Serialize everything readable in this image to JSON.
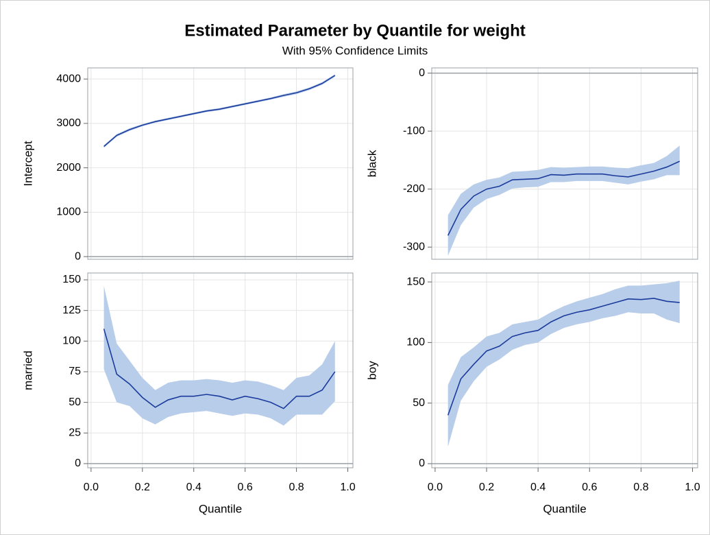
{
  "title": "Estimated Parameter by Quantile for weight",
  "subtitle": "With 95% Confidence Limits",
  "chart_data": [
    {
      "type": "band-line",
      "ylabel": "Intercept",
      "color": "#1a3b9c",
      "band_color": "#b8cde9",
      "x": [
        0.05,
        0.1,
        0.15,
        0.2,
        0.25,
        0.3,
        0.35,
        0.4,
        0.45,
        0.5,
        0.55,
        0.6,
        0.65,
        0.7,
        0.75,
        0.8,
        0.85,
        0.9,
        0.95
      ],
      "values": [
        2480,
        2730,
        2860,
        2960,
        3040,
        3100,
        3160,
        3220,
        3280,
        3320,
        3380,
        3440,
        3500,
        3560,
        3630,
        3690,
        3780,
        3900,
        4080
      ],
      "lower": [
        2450,
        2700,
        2830,
        2935,
        3015,
        3075,
        3135,
        3195,
        3255,
        3295,
        3355,
        3415,
        3475,
        3535,
        3600,
        3660,
        3750,
        3870,
        4050
      ],
      "upper": [
        2510,
        2760,
        2890,
        2985,
        3065,
        3125,
        3185,
        3245,
        3305,
        3345,
        3405,
        3465,
        3525,
        3585,
        3660,
        3720,
        3810,
        3930,
        4110
      ],
      "xlim": [
        -0.013,
        1.02
      ],
      "ylim": [
        -60,
        4250
      ],
      "yticks": [
        0,
        1000,
        2000,
        3000,
        4000
      ],
      "xgrid": [
        0,
        0.2,
        0.4,
        0.6,
        0.8,
        1
      ],
      "refline": 0,
      "grid": true
    },
    {
      "type": "band-line",
      "ylabel": "black",
      "color": "#1a3b9c",
      "band_color": "#b8cde9",
      "x": [
        0.05,
        0.1,
        0.15,
        0.2,
        0.25,
        0.3,
        0.35,
        0.4,
        0.45,
        0.5,
        0.55,
        0.6,
        0.65,
        0.7,
        0.75,
        0.8,
        0.85,
        0.9,
        0.95
      ],
      "values": [
        -280,
        -235,
        -212,
        -200,
        -195,
        -184,
        -183,
        -182,
        -175,
        -176,
        -174,
        -174,
        -174,
        -177,
        -179,
        -174,
        -169,
        -162,
        -152
      ],
      "lower": [
        -315,
        -262,
        -232,
        -217,
        -210,
        -199,
        -197,
        -196,
        -188,
        -188,
        -186,
        -186,
        -186,
        -189,
        -192,
        -187,
        -183,
        -176,
        -176
      ],
      "upper": [
        -245,
        -208,
        -192,
        -184,
        -180,
        -170,
        -169,
        -167,
        -162,
        -163,
        -162,
        -161,
        -161,
        -163,
        -164,
        -159,
        -155,
        -143,
        -125
      ],
      "xlim": [
        -0.013,
        1.02
      ],
      "ylim": [
        -321,
        9
      ],
      "yticks": [
        -300,
        -200,
        -100,
        0
      ],
      "xgrid": [
        0,
        0.2,
        0.4,
        0.6,
        0.8,
        1
      ],
      "refline": 0,
      "grid": true
    },
    {
      "type": "band-line",
      "ylabel": "married",
      "xlabel": "Quantile",
      "color": "#1a3b9c",
      "band_color": "#b8cde9",
      "x": [
        0.05,
        0.1,
        0.15,
        0.2,
        0.25,
        0.3,
        0.35,
        0.4,
        0.45,
        0.5,
        0.55,
        0.6,
        0.65,
        0.7,
        0.75,
        0.8,
        0.85,
        0.9,
        0.95
      ],
      "values": [
        110,
        73,
        65,
        54,
        46,
        52,
        55,
        55,
        56.5,
        55,
        52,
        55,
        53,
        50,
        45,
        55,
        55,
        60,
        75
      ],
      "lower": [
        77,
        50,
        47,
        37,
        32,
        38,
        41,
        42,
        43,
        41,
        39,
        41,
        40,
        37,
        31,
        40,
        40,
        40,
        51
      ],
      "upper": [
        145,
        98,
        84,
        70,
        60,
        66,
        68,
        68,
        69,
        68,
        66,
        68,
        67,
        64,
        60,
        70,
        72,
        81,
        100
      ],
      "xlim": [
        -0.013,
        1.02
      ],
      "ylim": [
        -3.4,
        155.6
      ],
      "yticks": [
        0,
        25,
        50,
        75,
        100,
        125,
        150
      ],
      "xticks": [
        {
          "value": 0,
          "label": "0.0"
        },
        0.2,
        0.4,
        0.6,
        0.8,
        {
          "value": 1,
          "label": "1.0"
        }
      ],
      "refline": 0,
      "grid": true
    },
    {
      "type": "band-line",
      "ylabel": "boy",
      "xlabel": "Quantile",
      "color": "#1a3b9c",
      "band_color": "#b8cde9",
      "x": [
        0.05,
        0.1,
        0.15,
        0.2,
        0.25,
        0.3,
        0.35,
        0.4,
        0.45,
        0.5,
        0.55,
        0.6,
        0.65,
        0.7,
        0.75,
        0.8,
        0.85,
        0.9,
        0.95
      ],
      "values": [
        40,
        70,
        82,
        93,
        97,
        105,
        108,
        110,
        117,
        122,
        125,
        127,
        130,
        133,
        136,
        135.5,
        136.5,
        134,
        133
      ],
      "lower": [
        14,
        52,
        68,
        80,
        86,
        94,
        98,
        100,
        107,
        112,
        115,
        117,
        120,
        122,
        125,
        124,
        124,
        119,
        116
      ],
      "upper": [
        65,
        88,
        96,
        105,
        108,
        115,
        117,
        119,
        125,
        130,
        134,
        137,
        140,
        144,
        147,
        147,
        148,
        149,
        151
      ],
      "xlim": [
        -0.013,
        1.02
      ],
      "ylim": [
        -3.4,
        157.4
      ],
      "yticks": [
        0,
        50,
        100,
        150
      ],
      "xticks": [
        {
          "value": 0,
          "label": "0.0"
        },
        0.2,
        0.4,
        0.6,
        0.8,
        {
          "value": 1,
          "label": "1.0"
        }
      ],
      "refline": 0,
      "grid": true
    }
  ]
}
